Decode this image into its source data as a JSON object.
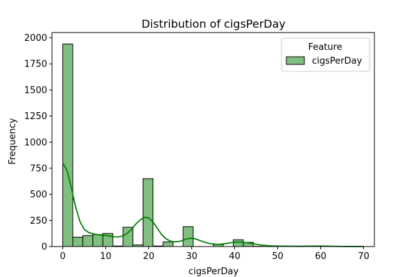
{
  "chart_data": {
    "type": "bar",
    "title": "Distribution of cigsPerDay",
    "xlabel": "cigsPerDay",
    "ylabel": "Frequency",
    "xlim": [
      -2.5,
      72.5
    ],
    "ylim": [
      0,
      2050
    ],
    "xticks": [
      0,
      10,
      20,
      30,
      40,
      50,
      60,
      70
    ],
    "yticks": [
      0,
      250,
      500,
      750,
      1000,
      1250,
      1500,
      1750,
      2000
    ],
    "bin_width": 2.333,
    "bins": [
      {
        "x0": 0.0,
        "value": 1940
      },
      {
        "x0": 2.333,
        "value": 90
      },
      {
        "x0": 4.667,
        "value": 105
      },
      {
        "x0": 7.0,
        "value": 115
      },
      {
        "x0": 9.333,
        "value": 125
      },
      {
        "x0": 11.667,
        "value": 5
      },
      {
        "x0": 14.0,
        "value": 185
      },
      {
        "x0": 16.333,
        "value": 15
      },
      {
        "x0": 18.667,
        "value": 650
      },
      {
        "x0": 21.0,
        "value": 5
      },
      {
        "x0": 23.333,
        "value": 45
      },
      {
        "x0": 25.667,
        "value": 0
      },
      {
        "x0": 28.0,
        "value": 190
      },
      {
        "x0": 30.333,
        "value": 0
      },
      {
        "x0": 32.667,
        "value": 0
      },
      {
        "x0": 35.0,
        "value": 20
      },
      {
        "x0": 37.333,
        "value": 0
      },
      {
        "x0": 39.667,
        "value": 65
      },
      {
        "x0": 42.0,
        "value": 40
      },
      {
        "x0": 44.333,
        "value": 2
      },
      {
        "x0": 46.667,
        "value": 0
      },
      {
        "x0": 49.0,
        "value": 5
      },
      {
        "x0": 51.333,
        "value": 0
      },
      {
        "x0": 53.667,
        "value": 0
      },
      {
        "x0": 56.0,
        "value": 0
      },
      {
        "x0": 58.333,
        "value": 3
      },
      {
        "x0": 60.667,
        "value": 0
      },
      {
        "x0": 63.0,
        "value": 0
      },
      {
        "x0": 65.333,
        "value": 0
      },
      {
        "x0": 67.667,
        "value": 1
      }
    ],
    "kde": {
      "x": [
        0,
        1,
        2,
        3,
        4,
        5,
        6,
        7,
        8,
        9,
        10,
        11,
        12,
        13,
        14,
        15,
        16,
        17,
        18,
        19,
        20,
        21,
        22,
        23,
        24,
        25,
        26,
        27,
        28,
        29,
        30,
        31,
        32,
        34,
        36,
        38,
        40,
        42,
        44,
        46,
        48,
        50,
        55,
        60,
        65,
        70
      ],
      "y": [
        800,
        730,
        560,
        380,
        240,
        165,
        135,
        122,
        115,
        110,
        107,
        100,
        93,
        92,
        102,
        125,
        165,
        215,
        255,
        280,
        275,
        235,
        175,
        115,
        75,
        52,
        45,
        48,
        60,
        75,
        80,
        72,
        55,
        30,
        20,
        28,
        42,
        42,
        30,
        15,
        7,
        4,
        2,
        5,
        1,
        0
      ]
    },
    "legend": {
      "title": "Feature",
      "entries": [
        "cigsPerDay"
      ],
      "position": "top-right"
    },
    "colors": {
      "bar_fill": "#80bf80",
      "bar_edge": "#000000",
      "kde_line": "#008000"
    }
  }
}
